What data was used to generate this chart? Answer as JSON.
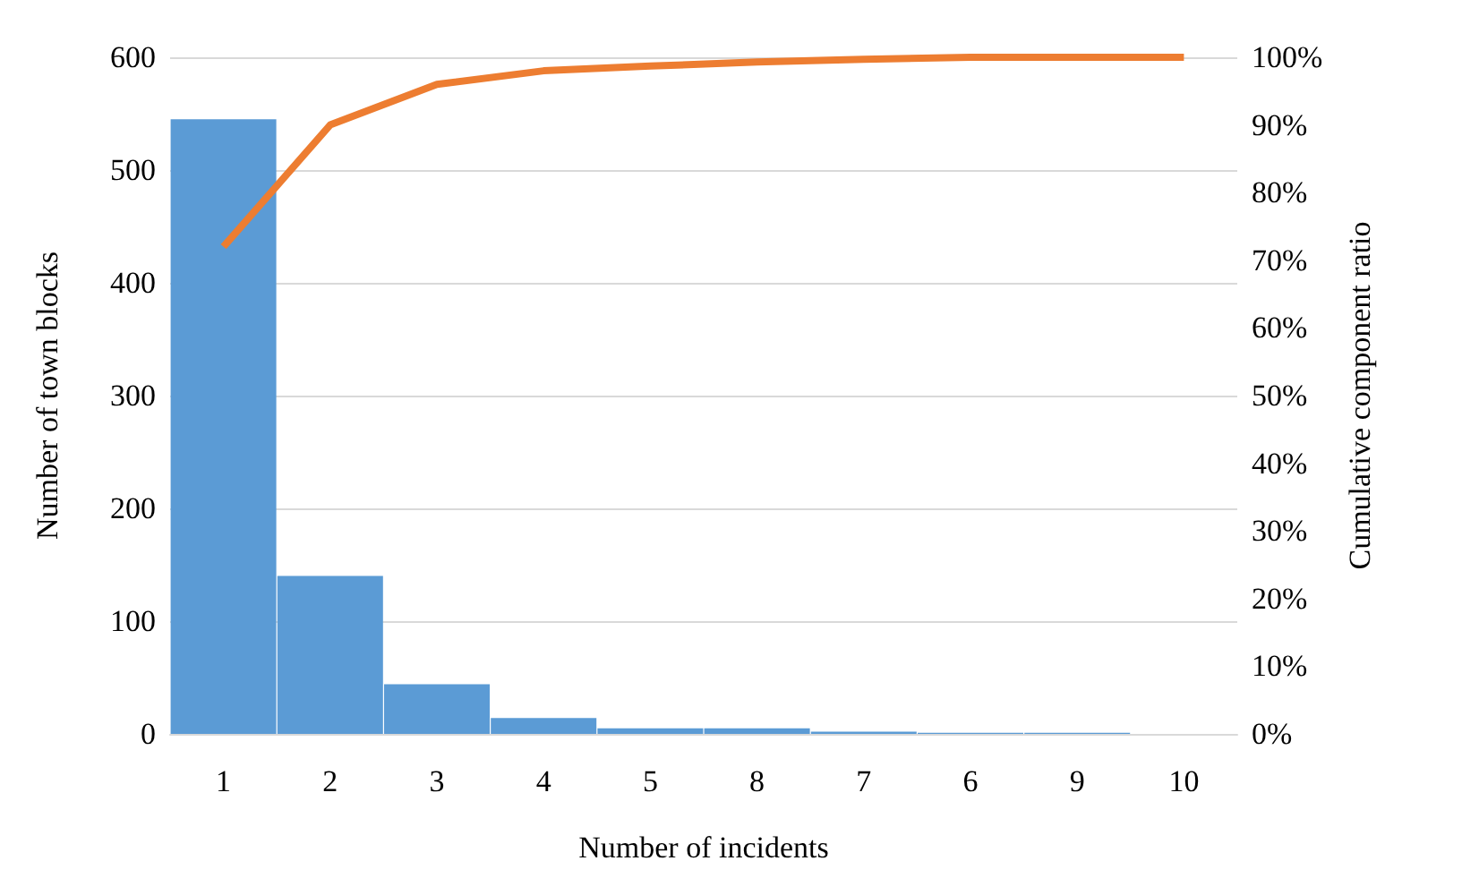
{
  "chart_data": {
    "type": "bar",
    "xlabel": "Number of incidents",
    "ylabel": "Number of town blocks",
    "y2label": "Cumulative component ratio",
    "categories": [
      "1",
      "2",
      "3",
      "4",
      "5",
      "8",
      "7",
      "6",
      "9",
      "10"
    ],
    "series": [
      {
        "color": "#5b9bd5",
        "values": [
          545,
          140,
          44,
          14,
          5,
          5,
          2,
          1,
          1,
          0
        ]
      },
      {
        "type": "line",
        "axis": "y2",
        "color": "#ed7d31",
        "values": [
          72,
          90,
          96,
          98,
          98.7,
          99.3,
          99.7,
          100,
          100,
          100
        ]
      }
    ],
    "ylim": [
      0,
      600
    ],
    "yticks": [
      0,
      100,
      200,
      300,
      400,
      500,
      600
    ],
    "y2lim": [
      0,
      100
    ],
    "y2ticks": [
      {
        "value": 0,
        "label": "0%"
      },
      {
        "value": 10,
        "label": "10%"
      },
      {
        "value": 20,
        "label": "20%"
      },
      {
        "value": 30,
        "label": "30%"
      },
      {
        "value": 40,
        "label": "40%"
      },
      {
        "value": 50,
        "label": "50%"
      },
      {
        "value": 60,
        "label": "60%"
      },
      {
        "value": 70,
        "label": "70%"
      },
      {
        "value": 80,
        "label": "80%"
      },
      {
        "value": 90,
        "label": "90%"
      },
      {
        "value": 100,
        "label": "100%"
      }
    ],
    "grid": "y",
    "marker": "none",
    "line_style": "solid"
  }
}
